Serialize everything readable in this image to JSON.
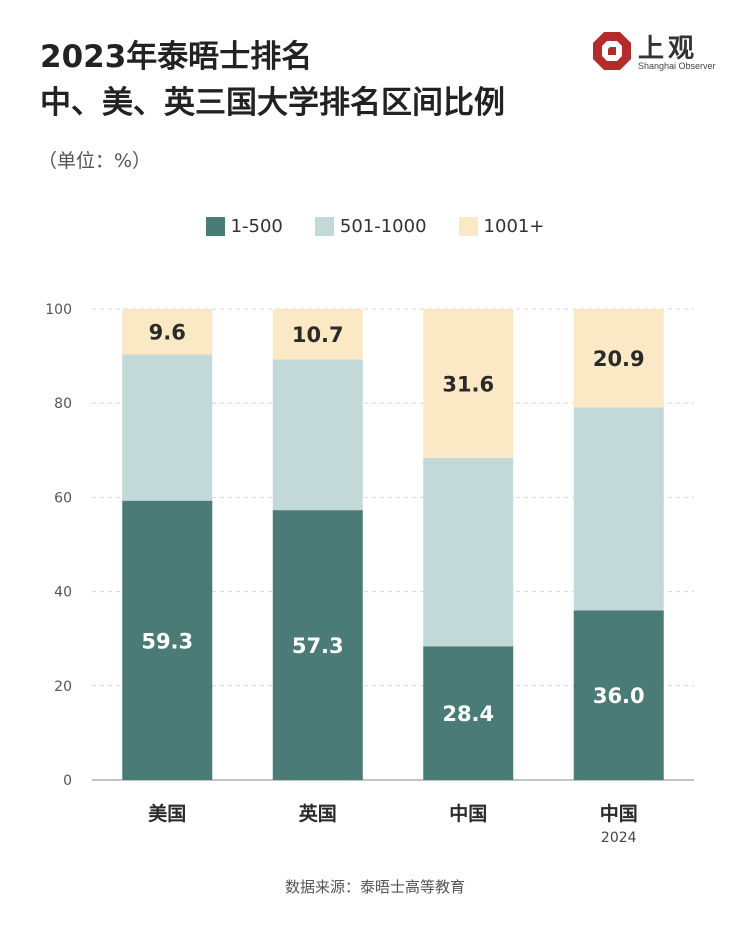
{
  "header": {
    "title_line1": "2023年泰晤士排名",
    "title_line2": "中、美、英三国大学排名区间比例",
    "unit": "（单位：%）"
  },
  "logo": {
    "name": "上观",
    "subtitle": "Shanghai Observer",
    "color": "#b52b2b"
  },
  "source": "数据来源：泰晤士高等教育",
  "colors": {
    "s1": "#4b7b77",
    "s2": "#c3d9d7",
    "s3": "#fbe8c5",
    "label_dark": "#2a2a2a",
    "label_light": "#ffffff"
  },
  "chart_data": {
    "type": "bar",
    "stacked": true,
    "categories": [
      "美国",
      "英国",
      "中国",
      "中国"
    ],
    "category_sublabels": [
      "",
      "",
      "",
      "2024"
    ],
    "series": [
      {
        "name": "1-500",
        "values": [
          59.3,
          57.3,
          28.4,
          36.0
        ],
        "labels": [
          "59.3",
          "57.3",
          "28.4",
          "36.0"
        ]
      },
      {
        "name": "501-1000",
        "values": [
          31.1,
          32.0,
          40.0,
          43.1
        ],
        "labels": [
          "",
          "",
          "",
          ""
        ]
      },
      {
        "name": "1001+",
        "values": [
          9.6,
          10.7,
          31.6,
          20.9
        ],
        "labels": [
          "9.6",
          "10.7",
          "31.6",
          "20.9"
        ]
      }
    ],
    "ylim": [
      0,
      100
    ],
    "yticks": [
      0,
      20,
      40,
      60,
      80,
      100
    ],
    "grid": true,
    "legend_position": "top-center"
  }
}
